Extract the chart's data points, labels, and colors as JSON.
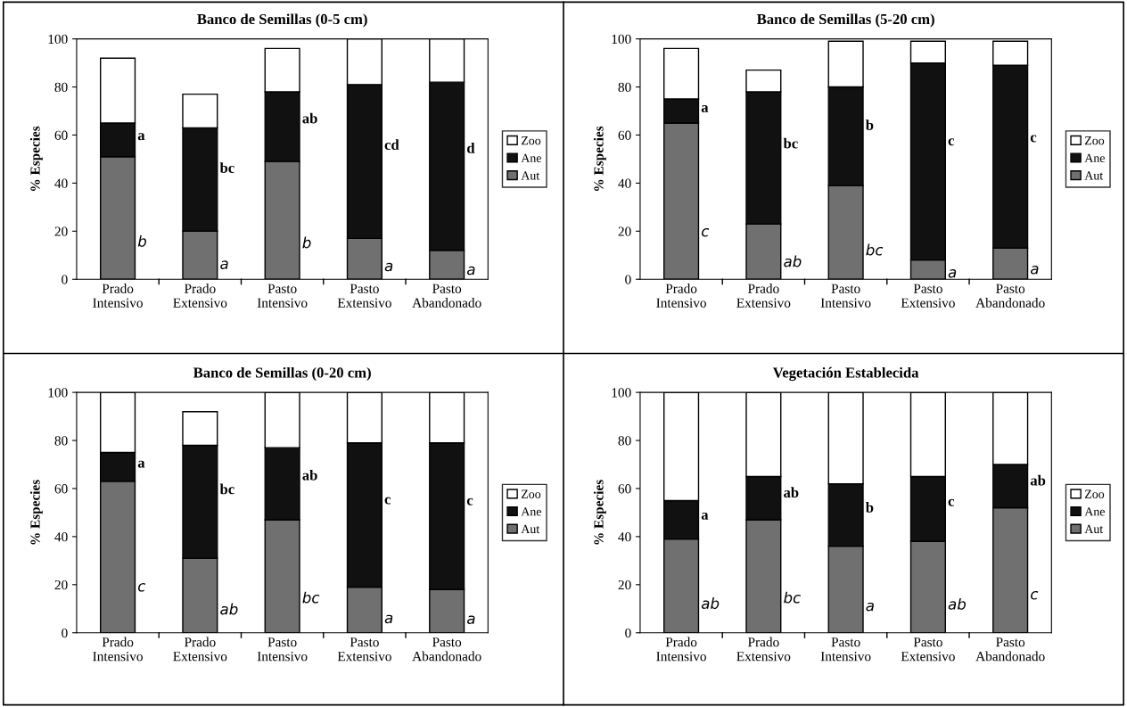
{
  "chart_data": [
    {
      "type": "bar",
      "title": "Banco de Semillas (0-5 cm)",
      "ylabel": "% Especies",
      "stacked": true,
      "legend": "right",
      "grid": false,
      "categories": [
        "Prado\nIntensivo",
        "Prado\nExtensivo",
        "Pasto\nIntensivo",
        "Pasto\nExtensivo",
        "Pasto\nAbandonado"
      ],
      "ylim": [
        0,
        100
      ],
      "yticks": [
        0,
        20,
        40,
        60,
        80,
        100
      ],
      "series": [
        {
          "name": "Aut",
          "color": "#707070",
          "values": [
            51,
            20,
            49,
            17,
            12
          ],
          "value_labels": [
            "b",
            "a",
            "b",
            "a",
            "a"
          ]
        },
        {
          "name": "Ane",
          "color": "#111111",
          "values": [
            14,
            43,
            29,
            64,
            70
          ],
          "value_labels": [
            "a",
            "bc",
            "ab",
            "cd",
            "d"
          ]
        },
        {
          "name": "Zoo",
          "color": "#ffffff",
          "values": [
            27,
            14,
            18,
            19,
            18
          ]
        }
      ]
    },
    {
      "type": "bar",
      "title": "Banco de Semillas (5-20 cm)",
      "ylabel": "% Especies",
      "stacked": true,
      "legend": "right",
      "grid": false,
      "categories": [
        "Prado\nIntensivo",
        "Prado\nExtensivo",
        "Pasto\nIntensivo",
        "Pasto\nExtensivo",
        "Pasto\nAbandonado"
      ],
      "ylim": [
        0,
        100
      ],
      "yticks": [
        0,
        20,
        40,
        60,
        80,
        100
      ],
      "series": [
        {
          "name": "Aut",
          "color": "#707070",
          "values": [
            65,
            23,
            39,
            8,
            13
          ],
          "value_labels": [
            "c",
            "ab",
            "bc",
            "a",
            "a"
          ]
        },
        {
          "name": "Ane",
          "color": "#111111",
          "values": [
            10,
            55,
            41,
            82,
            76
          ],
          "value_labels": [
            "a",
            "bc",
            "b",
            "c",
            "c"
          ]
        },
        {
          "name": "Zoo",
          "color": "#ffffff",
          "values": [
            21,
            9,
            19,
            9,
            10
          ]
        }
      ]
    },
    {
      "type": "bar",
      "title": "Banco de Semillas (0-20 cm)",
      "ylabel": "% Especies",
      "stacked": true,
      "legend": "right",
      "grid": false,
      "categories": [
        "Prado\nIntensivo",
        "Prado\nExtensivo",
        "Pasto\nIntensivo",
        "Pasto\nExtensivo",
        "Pasto\nAbandonado"
      ],
      "ylim": [
        0,
        100
      ],
      "yticks": [
        0,
        20,
        40,
        60,
        80,
        100
      ],
      "series": [
        {
          "name": "Aut",
          "color": "#707070",
          "values": [
            63,
            31,
            47,
            19,
            18
          ],
          "value_labels": [
            "c",
            "ab",
            "bc",
            "a",
            "a"
          ]
        },
        {
          "name": "Ane",
          "color": "#111111",
          "values": [
            12,
            47,
            30,
            60,
            61
          ],
          "value_labels": [
            "a",
            "bc",
            "ab",
            "c",
            "c"
          ]
        },
        {
          "name": "Zoo",
          "color": "#ffffff",
          "values": [
            25,
            14,
            23,
            21,
            21
          ]
        }
      ]
    },
    {
      "type": "bar",
      "title": "Vegetación Establecida",
      "ylabel": "% Especies",
      "stacked": true,
      "legend": "right",
      "grid": false,
      "categories": [
        "Prado\nIntensivo",
        "Prado\nExtensivo",
        "Pasto\nIntensivo",
        "Pasto\nExtensivo",
        "Pasto\nAbandonado"
      ],
      "ylim": [
        0,
        100
      ],
      "yticks": [
        0,
        20,
        40,
        60,
        80,
        100
      ],
      "series": [
        {
          "name": "Aut",
          "color": "#707070",
          "values": [
            39,
            47,
            36,
            38,
            52
          ],
          "value_labels": [
            "ab",
            "bc",
            "a",
            "ab",
            "c"
          ]
        },
        {
          "name": "Ane",
          "color": "#111111",
          "values": [
            16,
            18,
            26,
            27,
            18
          ],
          "value_labels": [
            "a",
            "ab",
            "b",
            "c",
            "ab"
          ]
        },
        {
          "name": "Zoo",
          "color": "#ffffff",
          "values": [
            45,
            35,
            38,
            35,
            30
          ]
        }
      ]
    }
  ]
}
